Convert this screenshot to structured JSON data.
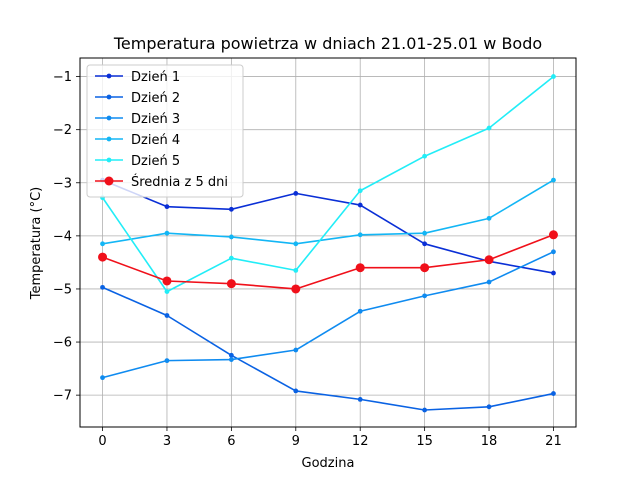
{
  "chart_data": {
    "type": "line",
    "title": "Temperatura powietrza w dniach 21.01-25.01 w Bodo",
    "xlabel": "Godzina",
    "ylabel": "Temperatura (°C)",
    "x": [
      0,
      3,
      6,
      9,
      12,
      15,
      18,
      21
    ],
    "xticks": [
      0,
      3,
      6,
      9,
      12,
      15,
      18,
      21
    ],
    "yticks": [
      -1,
      -2,
      -3,
      -4,
      -5,
      -6,
      -7
    ],
    "ytick_labels": [
      "−1",
      "−2",
      "−3",
      "−4",
      "−5",
      "−6",
      "−7"
    ],
    "xlim": [
      -1.05,
      22.05
    ],
    "ylim": [
      -7.6,
      -0.65
    ],
    "grid": true,
    "legend_position": "top-left",
    "series": [
      {
        "name": "Dzień 1",
        "color": "#0a2fd6",
        "values": [
          -2.95,
          -3.45,
          -3.5,
          -3.2,
          -3.42,
          -4.15,
          -4.48,
          -4.7
        ]
      },
      {
        "name": "Dzień 2",
        "color": "#0a62e3",
        "values": [
          -4.97,
          -5.5,
          -6.25,
          -6.92,
          -7.08,
          -7.28,
          -7.22,
          -6.97
        ]
      },
      {
        "name": "Dzień 3",
        "color": "#0f8bf0",
        "values": [
          -6.67,
          -6.35,
          -6.33,
          -6.15,
          -5.42,
          -5.13,
          -4.87,
          -4.3
        ]
      },
      {
        "name": "Dzień 4",
        "color": "#13b6f5",
        "values": [
          -4.15,
          -3.95,
          -4.02,
          -4.15,
          -3.98,
          -3.95,
          -3.67,
          -2.95
        ]
      },
      {
        "name": "Dzień 5",
        "color": "#22edf7",
        "values": [
          -3.28,
          -5.05,
          -4.42,
          -4.65,
          -3.15,
          -2.5,
          -1.97,
          -1.0
        ]
      },
      {
        "name": "Średnia z 5 dni",
        "color": "#f0101a",
        "values": [
          -4.4,
          -4.85,
          -4.9,
          -5.0,
          -4.6,
          -4.6,
          -4.45,
          -3.98
        ],
        "emphasis": true
      }
    ]
  }
}
